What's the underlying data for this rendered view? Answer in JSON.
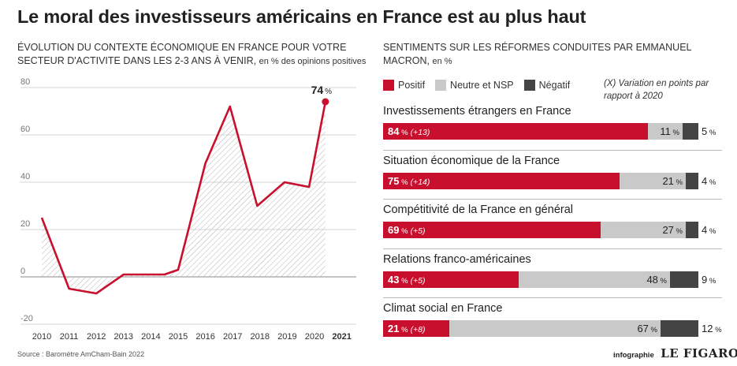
{
  "title": "Le moral des investisseurs américains en France est au plus haut",
  "left_subtitle": {
    "text": "ÉVOLUTION DU CONTEXTE ÉCONOMIQUE EN FRANCE POUR VOTRE SECTEUR D'ACTIVITE DANS LES 2-3 ANS À VENIR,",
    "unit": "en % des opinions positives"
  },
  "right_subtitle": {
    "text": "SENTIMENTS SUR LES RÉFORMES CONDUITES PAR EMMANUEL MACRON,",
    "unit": "en %"
  },
  "legend": {
    "positive": "Positif",
    "neutral": "Neutre et NSP",
    "negative": "Négatif"
  },
  "variation_note": "(X) Variation en points par rapport à 2020",
  "colors": {
    "positive": "#c8102e",
    "neutral": "#c9c9c9",
    "negative": "#444444",
    "line": "#c8102e"
  },
  "percent_sign": "%",
  "source": "Source : Baromètre AmCham-Bain 2022",
  "credit": {
    "label": "infographie",
    "logo": "LE FIGARO"
  },
  "chart_data": [
    {
      "type": "line",
      "title": "",
      "x_tick_labels": [
        "2010",
        "2011",
        "2012",
        "2013",
        "2014",
        "2015",
        "2016",
        "2017",
        "2018",
        "2019",
        "2020",
        "2021"
      ],
      "y_tick_labels": [
        "-20",
        "0",
        "20",
        "40",
        "60",
        "80"
      ],
      "ylim": [
        -20,
        80
      ],
      "grid": true,
      "points": [
        {
          "x": 2010.0,
          "y": 25
        },
        {
          "x": 2011.0,
          "y": -5
        },
        {
          "x": 2012.0,
          "y": -7
        },
        {
          "x": 2013.0,
          "y": 1
        },
        {
          "x": 2014.0,
          "y": 1
        },
        {
          "x": 2014.5,
          "y": 1
        },
        {
          "x": 2015.0,
          "y": 3
        },
        {
          "x": 2016.0,
          "y": 48
        },
        {
          "x": 2016.9,
          "y": 72
        },
        {
          "x": 2017.9,
          "y": 30
        },
        {
          "x": 2018.9,
          "y": 40
        },
        {
          "x": 2019.8,
          "y": 38
        },
        {
          "x": 2020.4,
          "y": 74
        }
      ],
      "end_label": "74"
    },
    {
      "type": "bar",
      "stacked": true,
      "categories": [
        "Investissements étrangers en France",
        "Situation économique de la France",
        "Compétitivité de la France en général",
        "Relations franco-américaines",
        "Climat social en France"
      ],
      "series": [
        {
          "name": "Positif",
          "values": [
            84,
            75,
            69,
            43,
            21
          ]
        },
        {
          "name": "Neutre et NSP",
          "values": [
            11,
            21,
            27,
            48,
            67
          ]
        },
        {
          "name": "Négatif",
          "values": [
            5,
            4,
            4,
            9,
            12
          ]
        }
      ],
      "variations": [
        "(+13)",
        "(+14)",
        "(+5)",
        "(+5)",
        "(+8)"
      ]
    }
  ]
}
